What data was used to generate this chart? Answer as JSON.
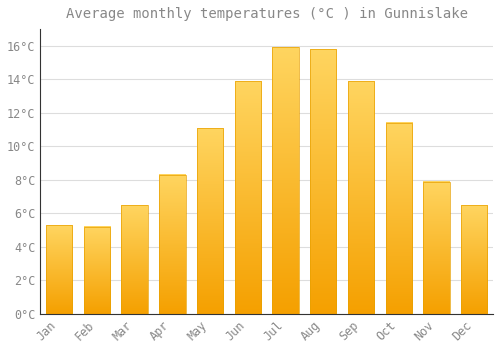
{
  "title": "Average monthly temperatures (°C ) in Gunnislake",
  "months": [
    "Jan",
    "Feb",
    "Mar",
    "Apr",
    "May",
    "Jun",
    "Jul",
    "Aug",
    "Sep",
    "Oct",
    "Nov",
    "Dec"
  ],
  "values": [
    5.3,
    5.2,
    6.5,
    8.3,
    11.1,
    13.9,
    15.9,
    15.8,
    13.9,
    11.4,
    7.9,
    6.5
  ],
  "bar_color_top": "#FFD060",
  "bar_color_bottom": "#F5A000",
  "bar_edge_color": "#E8A000",
  "background_color": "#FFFFFF",
  "grid_color": "#DDDDDD",
  "text_color": "#888888",
  "spine_color": "#333333",
  "ylim": [
    0,
    17
  ],
  "yticks": [
    0,
    2,
    4,
    6,
    8,
    10,
    12,
    14,
    16
  ],
  "title_fontsize": 10,
  "tick_fontsize": 8.5
}
